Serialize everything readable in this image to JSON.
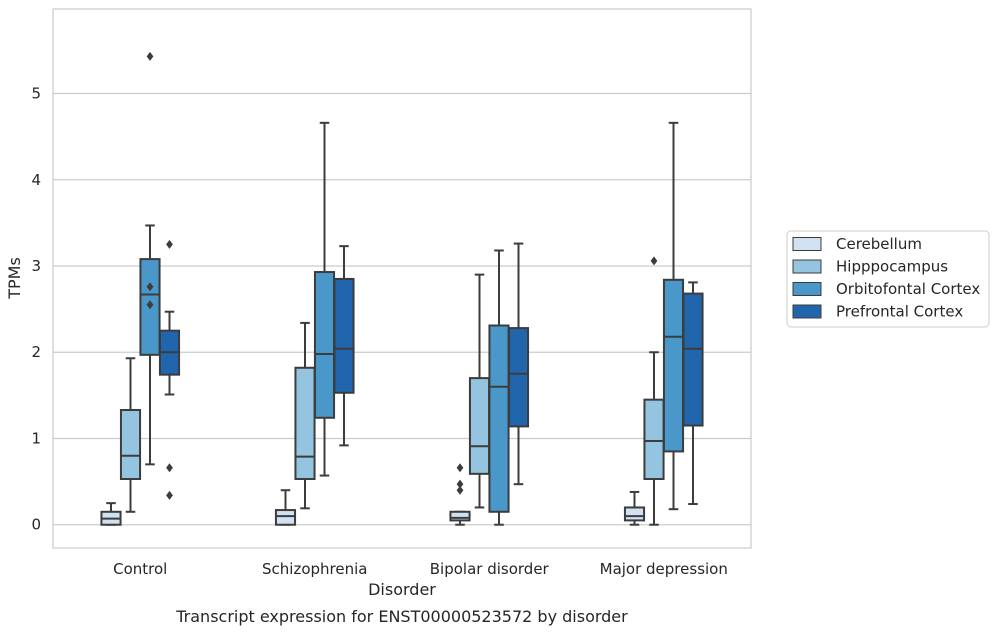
{
  "chart_data": {
    "type": "box",
    "xlabel": "Disorder",
    "ylabel": "TPMs",
    "caption": "Transcript expression for ENST00000523572 by disorder",
    "ylim": [
      -0.27,
      5.98
    ],
    "yticks": [
      "0",
      "1",
      "2",
      "3",
      "4",
      "5"
    ],
    "grid": "horizontal",
    "legend_position": "right",
    "categories": [
      "Control",
      "Schizophrenia",
      "Bipolar disorder",
      "Major depression"
    ],
    "series": [
      {
        "name": "Cerebellum",
        "color": "#d0e1f2",
        "boxes": [
          {
            "whislo": 0.0,
            "q1": 0.0,
            "med": 0.07,
            "q3": 0.15,
            "whishi": 0.25,
            "fliers": []
          },
          {
            "whislo": 0.0,
            "q1": 0.0,
            "med": 0.1,
            "q3": 0.17,
            "whishi": 0.4,
            "fliers": []
          },
          {
            "whislo": 0.0,
            "q1": 0.05,
            "med": 0.08,
            "q3": 0.15,
            "whishi": 0.15,
            "fliers": [
              0.4,
              0.47,
              0.66
            ]
          },
          {
            "whislo": 0.0,
            "q1": 0.05,
            "med": 0.1,
            "q3": 0.2,
            "whishi": 0.38,
            "fliers": []
          }
        ]
      },
      {
        "name": "Hipppocampus",
        "color": "#94c4df",
        "boxes": [
          {
            "whislo": 0.15,
            "q1": 0.53,
            "med": 0.8,
            "q3": 1.33,
            "whishi": 1.93,
            "fliers": []
          },
          {
            "whislo": 0.19,
            "q1": 0.53,
            "med": 0.79,
            "q3": 1.82,
            "whishi": 2.34,
            "fliers": []
          },
          {
            "whislo": 0.2,
            "q1": 0.59,
            "med": 0.91,
            "q3": 1.7,
            "whishi": 2.9,
            "fliers": []
          },
          {
            "whislo": 0.0,
            "q1": 0.53,
            "med": 0.97,
            "q3": 1.45,
            "whishi": 2.0,
            "fliers": [
              3.06
            ]
          }
        ]
      },
      {
        "name": "Orbitofontal Cortex",
        "color": "#4a98c9",
        "boxes": [
          {
            "whislo": 0.7,
            "q1": 1.97,
            "med": 2.67,
            "q3": 3.08,
            "whishi": 3.47,
            "fliers": [
              2.55,
              2.76,
              5.43
            ]
          },
          {
            "whislo": 0.57,
            "q1": 1.24,
            "med": 1.98,
            "q3": 2.93,
            "whishi": 4.66,
            "fliers": []
          },
          {
            "whislo": 0.0,
            "q1": 0.15,
            "med": 1.6,
            "q3": 2.31,
            "whishi": 3.18,
            "fliers": []
          },
          {
            "whislo": 0.18,
            "q1": 0.85,
            "med": 2.18,
            "q3": 2.84,
            "whishi": 4.66,
            "fliers": []
          }
        ]
      },
      {
        "name": "Prefrontal Cortex",
        "color": "#2166ac",
        "boxes": [
          {
            "whislo": 1.51,
            "q1": 1.74,
            "med": 2.0,
            "q3": 2.25,
            "whishi": 2.47,
            "fliers": [
              0.34,
              0.66,
              3.25
            ]
          },
          {
            "whislo": 0.92,
            "q1": 1.53,
            "med": 2.04,
            "q3": 2.85,
            "whishi": 3.23,
            "fliers": []
          },
          {
            "whislo": 0.47,
            "q1": 1.14,
            "med": 1.75,
            "q3": 2.28,
            "whishi": 3.26,
            "fliers": []
          },
          {
            "whislo": 0.24,
            "q1": 1.15,
            "med": 2.04,
            "q3": 2.68,
            "whishi": 2.81,
            "fliers": []
          }
        ]
      }
    ]
  }
}
